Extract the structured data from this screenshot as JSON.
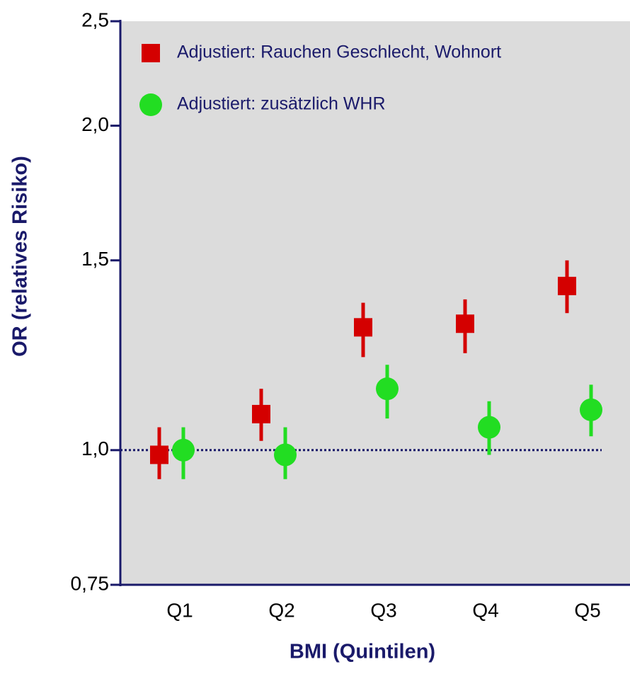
{
  "chart_data": {
    "type": "dot-errorbar",
    "x_label": "BMI (Quintilen)",
    "y_label": "OR (relatives Risiko)",
    "categories": [
      "Q1",
      "Q2",
      "Q3",
      "Q4",
      "Q5"
    ],
    "series": [
      {
        "name": "Adjustiert: Rauchen Geschlecht, Wohnort",
        "color": "#d40000",
        "marker": "square",
        "values": [
          0.99,
          1.08,
          1.3,
          1.31,
          1.42
        ],
        "ci_low": [
          0.94,
          1.02,
          1.22,
          1.23,
          1.34
        ],
        "ci_high": [
          1.05,
          1.14,
          1.37,
          1.38,
          1.5
        ]
      },
      {
        "name": "Adjustiert: zusätzlich WHR",
        "color": "#22dd22",
        "marker": "circle",
        "values": [
          1.0,
          0.99,
          1.14,
          1.05,
          1.09
        ],
        "ci_low": [
          0.94,
          0.94,
          1.07,
          0.99,
          1.03
        ],
        "ci_high": [
          1.05,
          1.05,
          1.2,
          1.11,
          1.15
        ]
      }
    ],
    "ylim": [
      0.75,
      2.5
    ],
    "yticks": [
      {
        "value": 0.75,
        "label": "0,75"
      },
      {
        "value": 1,
        "label": "1,0"
      },
      {
        "value": 1.5,
        "label": "1,5"
      },
      {
        "value": 2,
        "label": "2,0"
      },
      {
        "value": 2.5,
        "label": "2,5"
      }
    ],
    "log_scale_y": true,
    "reference_line": 1,
    "legend_position": "top-left",
    "plot_background": "#dcdcdc",
    "axis_color": "#1a1a6a"
  }
}
